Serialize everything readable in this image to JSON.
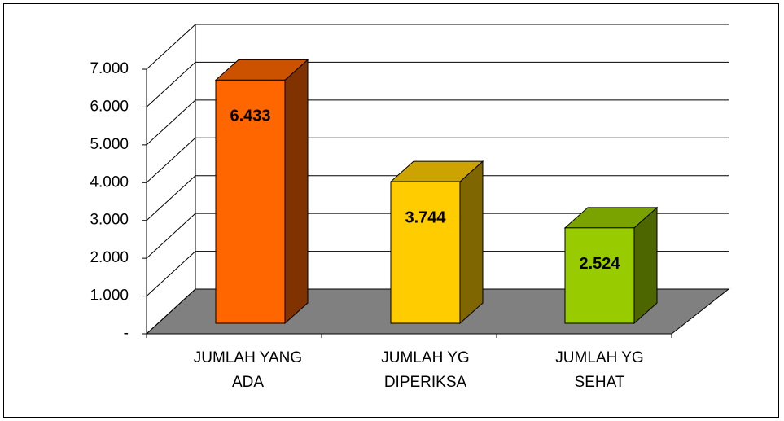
{
  "chart_data": {
    "type": "bar3d",
    "categories": [
      "JUMLAH YANG ADA",
      "JUMLAH YG DIPERIKSA",
      "JUMLAH YG SEHAT"
    ],
    "values": [
      6433,
      3744,
      2524
    ],
    "value_labels": [
      "6.433",
      "3.744",
      "2.524"
    ],
    "colors": [
      "#ff6600",
      "#ffcc00",
      "#99cc00"
    ],
    "ylim": [
      0,
      7000
    ],
    "yticks": [
      {
        "value": 0,
        "label": "-"
      },
      {
        "value": 1000,
        "label": "1.000"
      },
      {
        "value": 2000,
        "label": "2.000"
      },
      {
        "value": 3000,
        "label": "3.000"
      },
      {
        "value": 4000,
        "label": "4.000"
      },
      {
        "value": 5000,
        "label": "5.000"
      },
      {
        "value": 6000,
        "label": "6.000"
      },
      {
        "value": 7000,
        "label": "7.000"
      }
    ],
    "grid": true
  }
}
